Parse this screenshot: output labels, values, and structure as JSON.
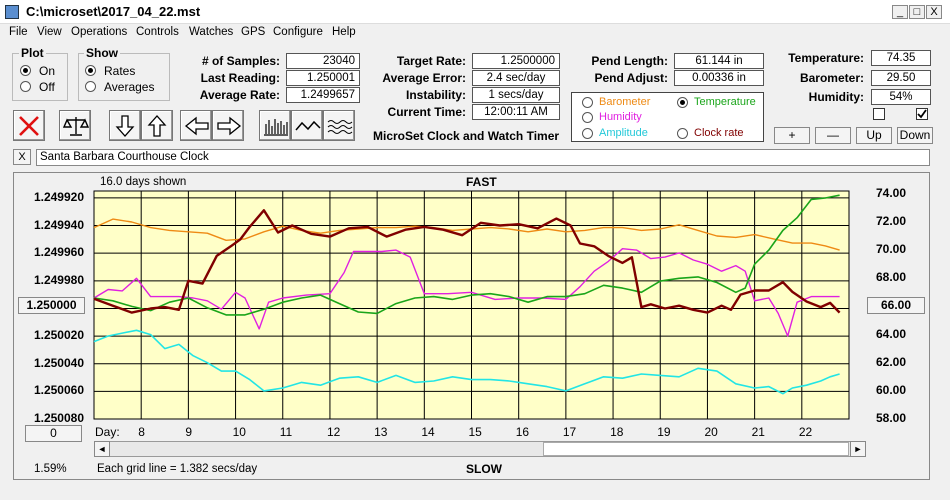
{
  "window": {
    "title": "C:\\microset\\2017_04_22.mst",
    "btn_min": "_",
    "btn_max": "□",
    "btn_close": "X"
  },
  "menu": [
    "File",
    "View",
    "Operations",
    "Controls",
    "Watches",
    "GPS",
    "Configure",
    "Help"
  ],
  "plot_group": {
    "title": "Plot",
    "on": "On",
    "off": "Off",
    "selected": "On"
  },
  "show_group": {
    "title": "Show",
    "rates": "Rates",
    "averages": "Averages",
    "selected": "Rates"
  },
  "stats": {
    "samples_label": "# of Samples:",
    "samples": "23040",
    "last_reading_label": "Last Reading:",
    "last_reading": "1.250001",
    "average_rate_label": "Average Rate:",
    "average_rate": "1.2499657",
    "target_rate_label": "Target Rate:",
    "target_rate": "1.2500000",
    "average_error_label": "Average Error:",
    "average_error": "2.4 sec/day",
    "instability_label": "Instability:",
    "instability": "1 secs/day",
    "current_time_label": "Current Time:",
    "current_time": "12:00:11 AM",
    "pend_length_label": "Pend Length:",
    "pend_length": "61.144 in",
    "pend_adjust_label": "Pend Adjust:",
    "pend_adjust": "0.00336 in"
  },
  "app_caption": "MicroSet Clock and Watch Timer",
  "trace_options": {
    "barometer": "Barometer",
    "temperature": "Temperature",
    "humidity": "Humidity",
    "amplitude": "Amplitude",
    "clock_rate": "Clock rate",
    "selected": "Temperature"
  },
  "env": {
    "temperature_label": "Temperature:",
    "temperature": "74.35",
    "barometer_label": "Barometer:",
    "barometer": "29.50",
    "humidity_label": "Humidity:",
    "humidity": "54%",
    "check1": false,
    "check2": true,
    "plus": "+",
    "minus": "—",
    "up": "Up",
    "down": "Down"
  },
  "clock_name": "Santa Barbara Courthouse Clock",
  "close_x": "X",
  "plot": {
    "days_shown": "16.0 days shown",
    "fast": "FAST",
    "slow": "SLOW",
    "day_label": "Day:",
    "center_value": "1.250000",
    "right_center_value": "66.00",
    "left_btn": "0",
    "percent": "1.59%",
    "grid_note": "Each grid line = 1.382 secs/day",
    "scroll_left": "◄",
    "scroll_right": "►"
  },
  "colors": {
    "plot_bg": "#ffffc8",
    "rate": "#800000",
    "temperature": "#1aa51a",
    "barometer": "#ee8a14",
    "humidity": "#e020e0",
    "amplitude": "#22e5e5"
  },
  "chart_data": {
    "type": "line",
    "title": "",
    "xlabel": "Day:",
    "x_ticks": [
      8,
      9,
      10,
      11,
      12,
      13,
      14,
      15,
      16,
      17,
      18,
      19,
      20,
      21,
      22
    ],
    "xlim": [
      7.0,
      23.0
    ],
    "y_left_ticks": [
      "1.249920",
      "1.249940",
      "1.249960",
      "1.249980",
      "1.250000",
      "1.250020",
      "1.250040",
      "1.250060",
      "1.250080"
    ],
    "ylim_left": [
      1.249915,
      1.25008
    ],
    "y_right_ticks": [
      "74.00",
      "72.00",
      "70.00",
      "68.00",
      "66.00",
      "64.00",
      "62.00",
      "60.00",
      "58.00"
    ],
    "ylim_right": [
      58.0,
      74.2
    ],
    "series": [
      {
        "key": "rate",
        "axis": "left",
        "color": "#800000",
        "width": 2.4,
        "x": [
          7.0,
          7.4,
          7.8,
          8.2,
          8.5,
          8.8,
          9.0,
          9.3,
          9.6,
          9.9,
          10.1,
          10.3,
          10.6,
          10.9,
          11.2,
          11.6,
          12.0,
          12.4,
          12.8,
          13.2,
          13.6,
          14.0,
          14.4,
          14.8,
          15.2,
          15.6,
          16.0,
          16.4,
          16.8,
          17.1,
          17.3,
          17.6,
          17.9,
          18.2,
          18.4,
          18.6,
          18.8,
          19.1,
          19.4,
          19.7,
          20.0,
          20.3,
          20.5,
          20.7,
          21.0,
          21.3,
          21.6,
          21.8,
          22.1,
          22.4,
          22.6,
          22.8
        ],
        "y": [
          1.249993,
          1.249998,
          1.250003,
          1.25,
          1.249999,
          1.250001,
          1.24998,
          1.249982,
          1.249962,
          1.249955,
          1.24995,
          1.249941,
          1.249929,
          1.249945,
          1.24994,
          1.249946,
          1.249948,
          1.249942,
          1.249941,
          1.249948,
          1.249943,
          1.249941,
          1.249943,
          1.249947,
          1.249938,
          1.24994,
          1.249939,
          1.249942,
          1.249935,
          1.24994,
          1.249953,
          1.249955,
          1.249962,
          1.249967,
          1.249963,
          1.249999,
          1.249997,
          1.25,
          1.249998,
          1.250001,
          1.250003,
          1.249998,
          1.250001,
          1.24999,
          1.249987,
          1.249987,
          1.249981,
          1.249988,
          1.249995,
          1.249999,
          1.249996,
          1.250003
        ]
      },
      {
        "key": "temperature",
        "axis": "right",
        "color": "#1aa51a",
        "width": 1.6,
        "x": [
          7.0,
          7.4,
          7.8,
          8.2,
          8.6,
          9.0,
          9.4,
          9.8,
          10.2,
          10.6,
          11.0,
          11.4,
          11.8,
          12.2,
          12.6,
          13.0,
          13.4,
          13.8,
          14.2,
          14.6,
          15.0,
          15.4,
          15.8,
          16.2,
          16.6,
          17.0,
          17.4,
          17.8,
          18.2,
          18.6,
          19.0,
          19.4,
          19.8,
          20.2,
          20.6,
          20.8,
          21.0,
          21.3,
          21.6,
          21.9,
          22.2,
          22.5,
          22.8
        ],
        "y": [
          66.6,
          66.4,
          66.0,
          65.7,
          66.3,
          66.6,
          65.9,
          65.4,
          65.4,
          65.8,
          66.3,
          66.6,
          66.8,
          66.2,
          65.6,
          65.5,
          66.2,
          66.6,
          66.7,
          66.5,
          66.8,
          66.9,
          66.7,
          66.3,
          66.7,
          66.7,
          66.9,
          67.5,
          67.3,
          67.0,
          67.8,
          68.0,
          68.1,
          67.7,
          67.0,
          67.3,
          69.0,
          70.0,
          71.4,
          72.3,
          73.6,
          73.7,
          73.9
        ]
      },
      {
        "key": "barometer",
        "axis": "right",
        "color": "#ee8a14",
        "width": 1.4,
        "x": [
          7.0,
          7.4,
          7.8,
          8.2,
          8.6,
          9.0,
          9.4,
          9.8,
          10.2,
          10.6,
          11.0,
          11.4,
          11.8,
          12.2,
          12.6,
          13.0,
          13.4,
          13.8,
          14.2,
          14.6,
          15.0,
          15.4,
          15.8,
          16.2,
          16.6,
          17.0,
          17.4,
          17.8,
          18.2,
          18.6,
          19.0,
          19.4,
          19.8,
          20.2,
          20.6,
          21.0,
          21.4,
          21.8,
          22.2,
          22.5,
          22.8
        ],
        "y": [
          71.6,
          72.2,
          72.0,
          71.6,
          71.4,
          71.3,
          71.2,
          70.7,
          70.8,
          71.3,
          71.7,
          71.4,
          71.2,
          71.4,
          71.5,
          71.6,
          71.6,
          71.7,
          71.6,
          71.4,
          71.5,
          71.6,
          71.5,
          71.3,
          71.5,
          71.3,
          71.4,
          71.6,
          71.6,
          71.4,
          71.5,
          71.8,
          71.4,
          71.0,
          70.9,
          71.1,
          70.8,
          70.5,
          70.5,
          70.3,
          70.0
        ]
      },
      {
        "key": "humidity",
        "axis": "right",
        "color": "#e020e0",
        "width": 1.4,
        "x": [
          7.0,
          7.3,
          7.6,
          7.9,
          8.2,
          8.5,
          8.8,
          9.1,
          9.4,
          9.7,
          10.0,
          10.2,
          10.5,
          10.7,
          11.0,
          11.5,
          12.0,
          12.3,
          12.5,
          12.8,
          13.1,
          13.4,
          13.7,
          14.0,
          14.5,
          15.0,
          15.5,
          16.0,
          16.5,
          17.0,
          17.3,
          17.6,
          17.9,
          18.2,
          18.5,
          18.8,
          19.1,
          19.4,
          19.7,
          20.0,
          20.3,
          20.6,
          20.8,
          21.0,
          21.3,
          21.5,
          21.7,
          21.9,
          22.2,
          22.5,
          22.8
        ],
        "y": [
          66.6,
          67.2,
          67.1,
          68.0,
          66.7,
          66.7,
          66.7,
          66.6,
          66.4,
          65.8,
          67.0,
          66.6,
          64.4,
          66.3,
          66.6,
          66.8,
          66.9,
          68.4,
          69.9,
          69.9,
          69.9,
          70.0,
          69.5,
          66.9,
          66.9,
          67.0,
          66.5,
          66.6,
          66.6,
          66.5,
          67.4,
          68.5,
          69.2,
          70.1,
          70.0,
          69.4,
          69.5,
          69.8,
          69.3,
          69.0,
          68.5,
          68.9,
          68.5,
          66.4,
          66.6,
          65.5,
          63.9,
          66.3,
          66.7,
          66.7,
          66.7
        ]
      },
      {
        "key": "amplitude",
        "axis": "right",
        "color": "#22e5e5",
        "width": 1.6,
        "x": [
          7.0,
          7.3,
          7.6,
          7.9,
          8.2,
          8.5,
          8.8,
          9.1,
          9.4,
          9.7,
          10.0,
          10.3,
          10.6,
          11.0,
          11.4,
          11.8,
          12.2,
          12.6,
          13.0,
          13.4,
          13.8,
          14.2,
          14.6,
          15.0,
          15.4,
          15.8,
          16.2,
          16.6,
          17.0,
          17.4,
          17.8,
          18.2,
          18.6,
          19.0,
          19.4,
          19.8,
          20.2,
          20.6,
          21.0,
          21.3,
          21.6,
          21.8,
          22.1,
          22.4,
          22.6,
          22.8
        ],
        "y": [
          63.5,
          63.9,
          64.1,
          64.3,
          64.0,
          63.0,
          63.3,
          62.5,
          62.0,
          61.4,
          61.4,
          60.8,
          60.0,
          60.2,
          60.6,
          60.4,
          60.9,
          61.0,
          60.6,
          61.1,
          60.6,
          60.7,
          61.0,
          60.8,
          60.8,
          60.7,
          60.5,
          60.3,
          60.0,
          60.5,
          61.0,
          60.9,
          61.2,
          61.1,
          61.0,
          61.6,
          61.4,
          60.5,
          60.2,
          60.3,
          59.8,
          60.2,
          60.4,
          60.7,
          61.0,
          61.2
        ]
      }
    ]
  }
}
